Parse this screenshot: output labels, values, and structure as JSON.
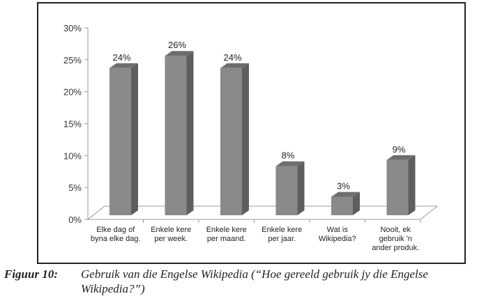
{
  "chart_data": {
    "type": "bar",
    "title": "",
    "xlabel": "",
    "ylabel": "",
    "ylim": [
      0,
      30
    ],
    "yticks": [
      "0%",
      "5%",
      "10%",
      "15%",
      "20%",
      "25%",
      "30%"
    ],
    "categories": [
      [
        "Elke dag of",
        "byna elke dag."
      ],
      [
        "Enkele kere",
        "per week."
      ],
      [
        "Enkele kere",
        "per maand."
      ],
      [
        "Enkele kere",
        "per jaar."
      ],
      [
        "Wat is",
        "Wikipedia?"
      ],
      [
        "Nooit, ek",
        "gebruik 'n",
        "ander produk."
      ]
    ],
    "values": [
      24,
      26,
      24,
      8,
      3,
      9
    ],
    "data_labels": [
      "24%",
      "26%",
      "24%",
      "8%",
      "3%",
      "9%"
    ],
    "grid": false,
    "legend": "none",
    "bar_color": "#8a8a8c",
    "bar_side_color": "#5e5e60",
    "bar_top_color": "#6e6e70"
  },
  "caption": {
    "label": "Figuur 10:",
    "line1": "Gebruik van die Engelse Wikipedia (“Hoe gereeld gebruik jy die Engelse",
    "line2": "Wikipedia?”)"
  }
}
